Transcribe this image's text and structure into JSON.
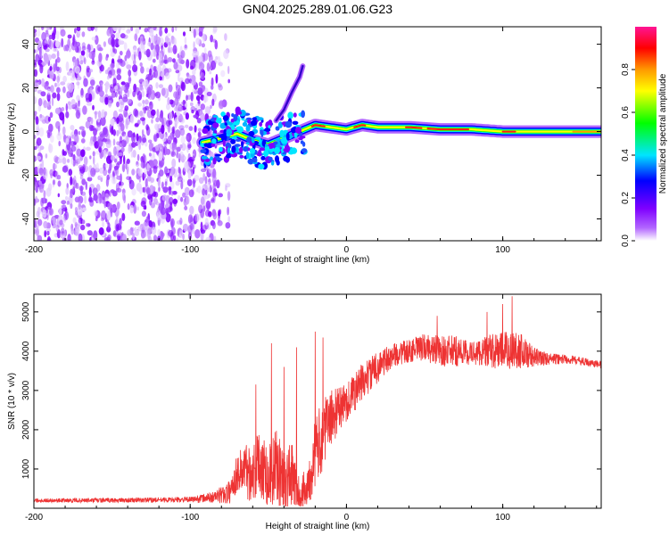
{
  "figure_title": "GN04.2025.289.01.06.G23",
  "chart_data": [
    {
      "type": "heatmap",
      "name": "spectrogram",
      "xlabel": "Height of straight line (km)",
      "ylabel": "Frequency (Hz)",
      "xlim": [
        -200,
        163
      ],
      "ylim": [
        -50,
        48
      ],
      "x_ticks": [
        "-200",
        "-100",
        "0",
        "100"
      ],
      "x_tick_values": [
        -200,
        -100,
        0,
        100
      ],
      "y_ticks": [
        "40",
        "20",
        "0",
        "-20",
        "-40"
      ],
      "y_tick_values": [
        40,
        20,
        0,
        -20,
        -40
      ],
      "noise_region_x_max": -83,
      "signal_track": {
        "x": [
          -92,
          -80,
          -70,
          -60,
          -50,
          -40,
          -30,
          -20,
          -10,
          0,
          10,
          20,
          40,
          60,
          80,
          100,
          120,
          140,
          163
        ],
        "frequency": [
          -5,
          -3,
          -1,
          -4,
          -6,
          -3,
          0,
          3,
          2,
          1,
          3,
          2,
          2,
          1,
          1,
          0,
          0,
          0,
          0
        ]
      },
      "side_branch": {
        "x": [
          -45,
          -40,
          -35,
          -30,
          -28
        ],
        "frequency": [
          5,
          10,
          18,
          25,
          30
        ]
      },
      "colorbar": {
        "label": "Normalized spectral amplitude",
        "range": [
          0,
          1
        ],
        "ticks": [
          "0.0",
          "0.2",
          "0.4",
          "0.6",
          "0.8"
        ],
        "tick_values": [
          0.0,
          0.2,
          0.4,
          0.6,
          0.8
        ],
        "color_stops": [
          "#ffffff",
          "#b266ff",
          "#7f00ff",
          "#0000ff",
          "#00e5ff",
          "#00ff00",
          "#ffff00",
          "#ff9900",
          "#ff0000",
          "#ff1493"
        ]
      }
    },
    {
      "type": "line",
      "name": "snr",
      "xlabel": "Height of straight line (km)",
      "ylabel": "SNR (10 * v/v)",
      "xlim": [
        -200,
        163
      ],
      "ylim": [
        0,
        5450
      ],
      "x_ticks": [
        "-200",
        "-100",
        "0",
        "100"
      ],
      "x_tick_values": [
        -200,
        -100,
        0,
        100
      ],
      "y_ticks": [
        "5000",
        "4000",
        "3000",
        "2000",
        "1000"
      ],
      "y_tick_values": [
        5000,
        4000,
        3000,
        2000,
        1000
      ],
      "line_color": "#ee3333",
      "envelope": {
        "x": [
          -200,
          -150,
          -100,
          -85,
          -75,
          -70,
          -65,
          -60,
          -55,
          -50,
          -45,
          -40,
          -35,
          -30,
          -25,
          -20,
          -15,
          -10,
          -5,
          0,
          10,
          20,
          30,
          40,
          50,
          60,
          70,
          80,
          90,
          100,
          110,
          120,
          130,
          140,
          150,
          163
        ],
        "center": [
          200,
          200,
          220,
          280,
          400,
          900,
          1000,
          900,
          1200,
          800,
          1100,
          700,
          800,
          300,
          600,
          1400,
          1900,
          2300,
          2500,
          2700,
          3200,
          3600,
          3900,
          4000,
          4100,
          4000,
          4000,
          3950,
          4000,
          4000,
          4050,
          3850,
          3800,
          3800,
          3750,
          3650
        ],
        "spread": [
          50,
          60,
          70,
          150,
          300,
          500,
          700,
          800,
          900,
          900,
          900,
          900,
          900,
          400,
          600,
          900,
          900,
          700,
          600,
          500,
          500,
          400,
          300,
          300,
          350,
          400,
          400,
          300,
          400,
          500,
          500,
          250,
          150,
          120,
          100,
          100
        ]
      },
      "peaks": [
        {
          "x": -58,
          "y": 3150
        },
        {
          "x": -48,
          "y": 4200
        },
        {
          "x": -40,
          "y": 3600
        },
        {
          "x": -32,
          "y": 4100
        },
        {
          "x": -20,
          "y": 4500
        },
        {
          "x": -15,
          "y": 4350
        },
        {
          "x": 58,
          "y": 4900
        },
        {
          "x": 90,
          "y": 5000
        },
        {
          "x": 100,
          "y": 5200
        },
        {
          "x": 106,
          "y": 5400
        }
      ]
    }
  ]
}
